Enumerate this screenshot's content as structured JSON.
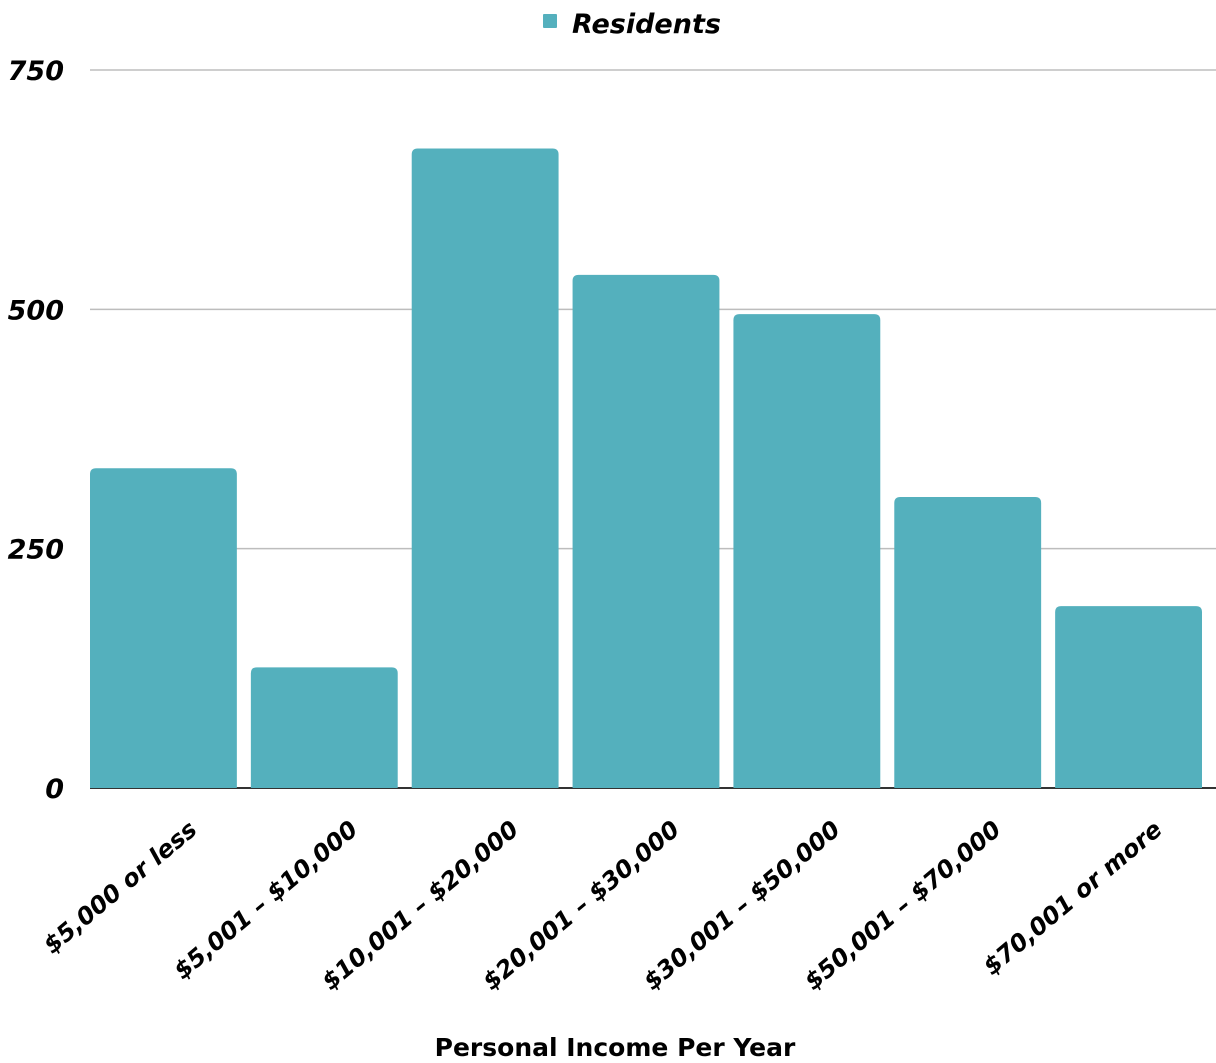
{
  "chart_data": {
    "type": "bar",
    "categories": [
      "$5,000 or less",
      "$5,001 – $10,000",
      "$10,001 – $20,000",
      "$20,001 – $30,000",
      "$30,001 – $50,000",
      "$50,001 – $70,000",
      "$70,001 or more"
    ],
    "series": [
      {
        "name": "Residents",
        "values": [
          334,
          126,
          668,
          536,
          495,
          304,
          190
        ],
        "color": "#54b0bd"
      }
    ],
    "xlabel": "Personal Income Per Year",
    "ylabel": "",
    "ylim": [
      0,
      750
    ],
    "yticks": [
      0,
      250,
      500,
      750
    ],
    "ytick_labels": [
      "0",
      "250",
      "500",
      "750"
    ],
    "grid": true,
    "legend_position": "top-center"
  }
}
